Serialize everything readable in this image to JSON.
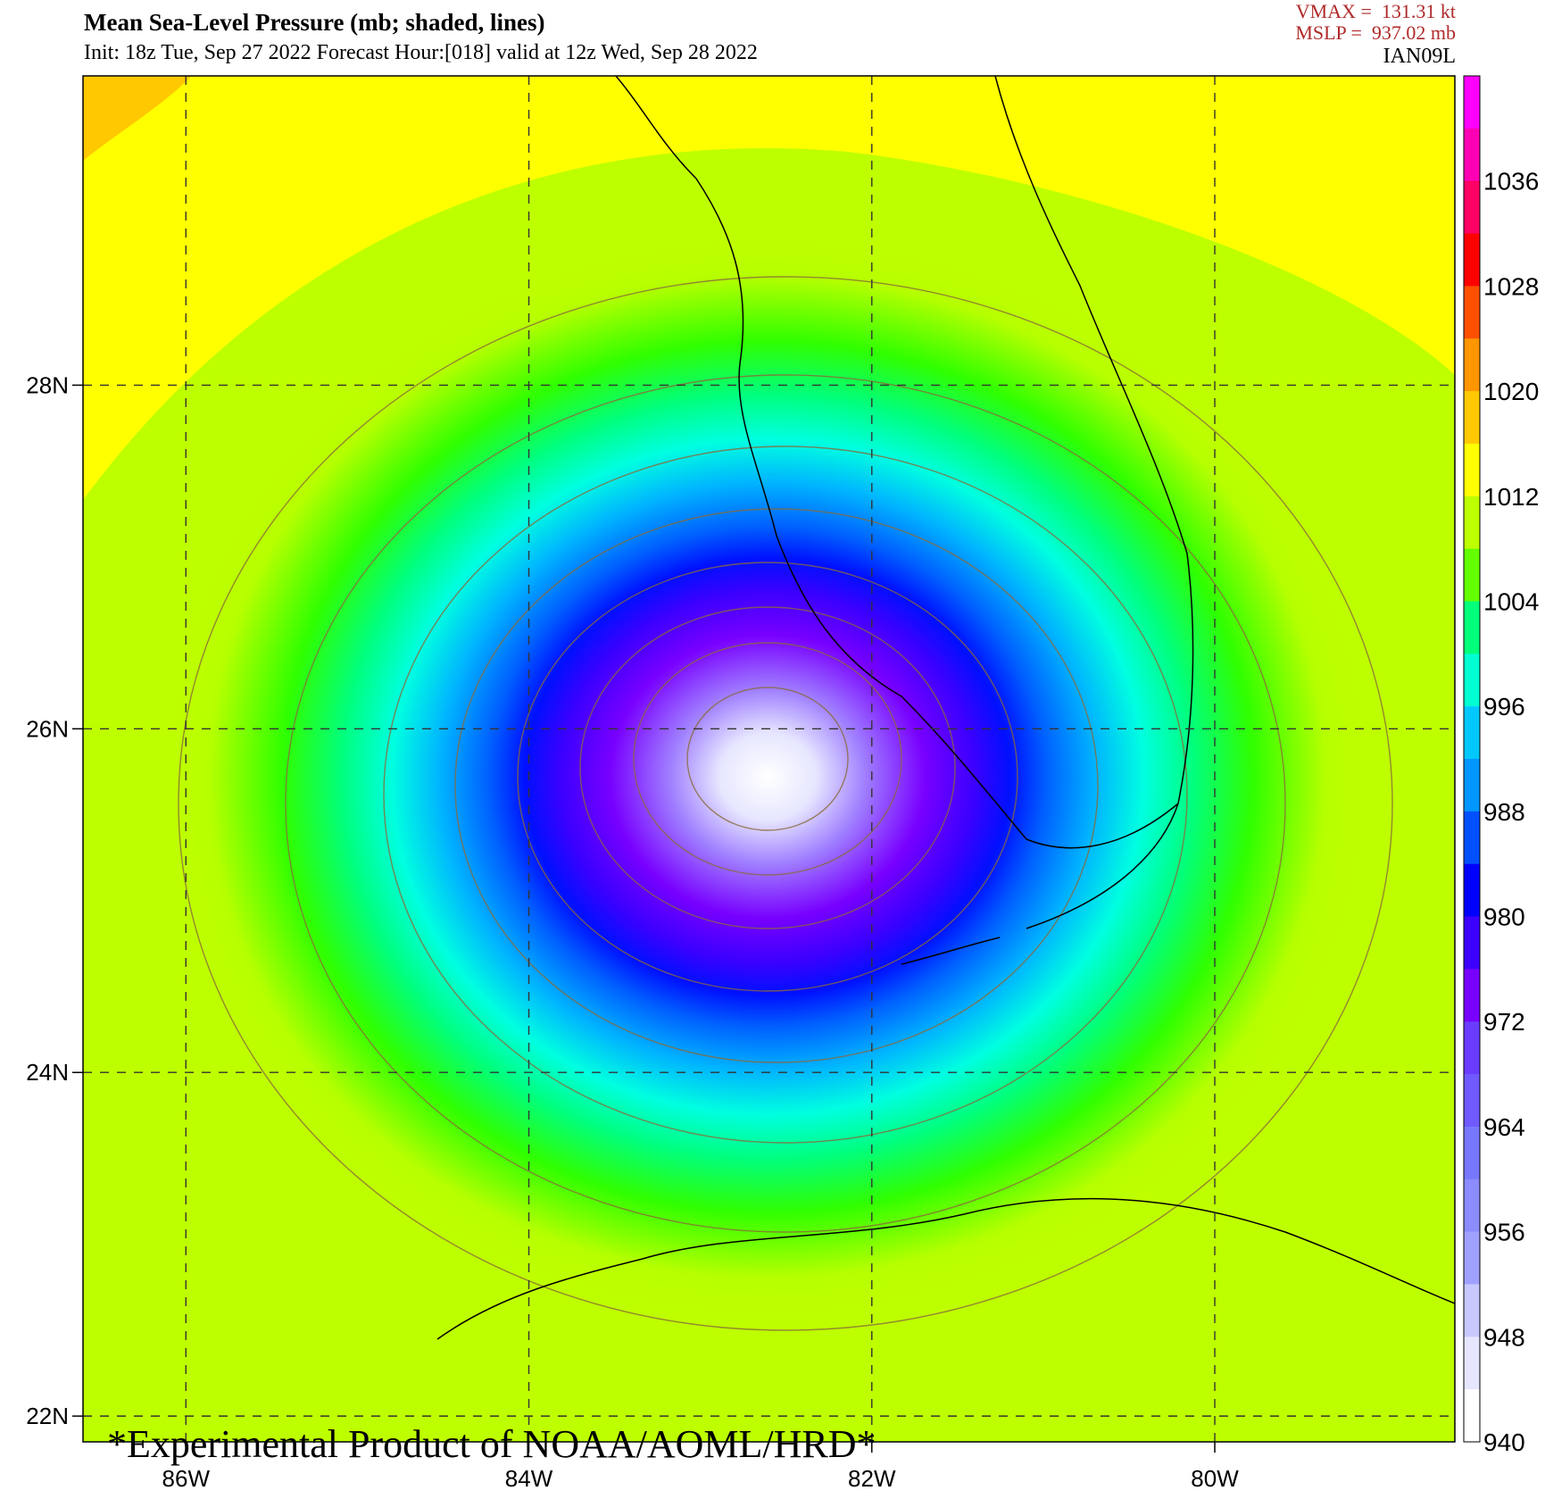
{
  "header": {
    "title": "Mean Sea-Level Pressure (mb; shaded, lines)",
    "subtitle": "Init: 18z Tue, Sep 27 2022  Forecast Hour:[018]  valid at 12z Wed, Sep 28 2022",
    "vmax": "VMAX =  131.31 kt",
    "mslp": "MSLP =  937.02 mb",
    "storm_id": "IAN09L"
  },
  "map": {
    "lon_range": [
      -86.6,
      -78.6
    ],
    "lat_range": [
      21.85,
      29.8
    ],
    "x_ticks": [
      {
        "lon": -86,
        "label": "86W"
      },
      {
        "lon": -84,
        "label": "84W"
      },
      {
        "lon": -82,
        "label": "82W"
      },
      {
        "lon": -80,
        "label": "80W"
      }
    ],
    "y_ticks": [
      {
        "lat": 28,
        "label": "28N"
      },
      {
        "lat": 26,
        "label": "26N"
      },
      {
        "lat": 24,
        "label": "24N"
      },
      {
        "lat": 22,
        "label": "22N"
      }
    ],
    "center": {
      "lon": -82.65,
      "lat": 25.8
    },
    "gridlines": "dashed"
  },
  "colorbar": {
    "labels": [
      "1036",
      "1028",
      "1020",
      "1012",
      "1004",
      "996",
      "988",
      "980",
      "972",
      "964",
      "956",
      "948",
      "940"
    ],
    "colors": [
      "#ff00ff",
      "#ff00b4",
      "#ff0064",
      "#ff0000",
      "#ff5000",
      "#ff9600",
      "#ffc800",
      "#ffff00",
      "#beff00",
      "#64ff00",
      "#00ff7a",
      "#00ffd2",
      "#00c8ff",
      "#0096ff",
      "#0050ff",
      "#0000ff",
      "#3c00ff",
      "#7800ff",
      "#6a3cff",
      "#6e5aff",
      "#7878ff",
      "#8c8cff",
      "#a0a0ff",
      "#c8c8ff",
      "#e6e6ff",
      "#ffffff"
    ]
  },
  "watermark": "*Experimental Product of NOAA/AOML/HRD*"
}
